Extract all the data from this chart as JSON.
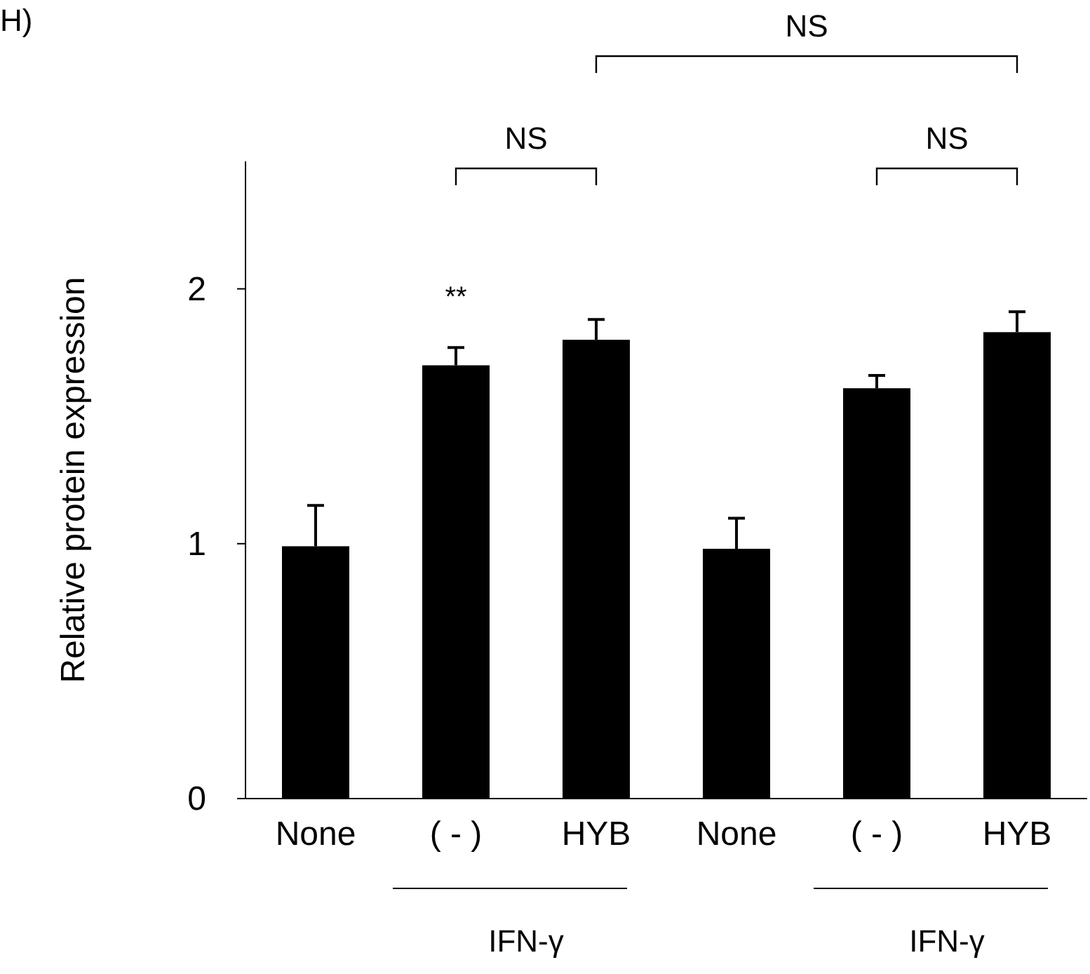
{
  "chart_data": {
    "type": "bar",
    "ylabel": "Relative protein expression",
    "categories": [
      "None",
      "( - )",
      "HYB",
      "None",
      "( - )",
      "HYB"
    ],
    "values": [
      0.99,
      1.7,
      1.8,
      0.98,
      1.61,
      1.83
    ],
    "errors": [
      [
        0.99,
        1.15
      ],
      [
        1.7,
        1.77
      ],
      [
        1.8,
        1.88
      ],
      [
        0.98,
        1.1
      ],
      [
        1.61,
        1.66
      ],
      [
        1.83,
        1.91
      ]
    ],
    "color": "#000000",
    "ylim": [
      0,
      2.5
    ],
    "yticks": [
      0,
      1,
      2
    ],
    "grid": false,
    "annotations": [
      "H)",
      "**",
      "NS",
      "NS",
      "NS",
      "IFN-γ",
      "IFN-γ"
    ]
  }
}
